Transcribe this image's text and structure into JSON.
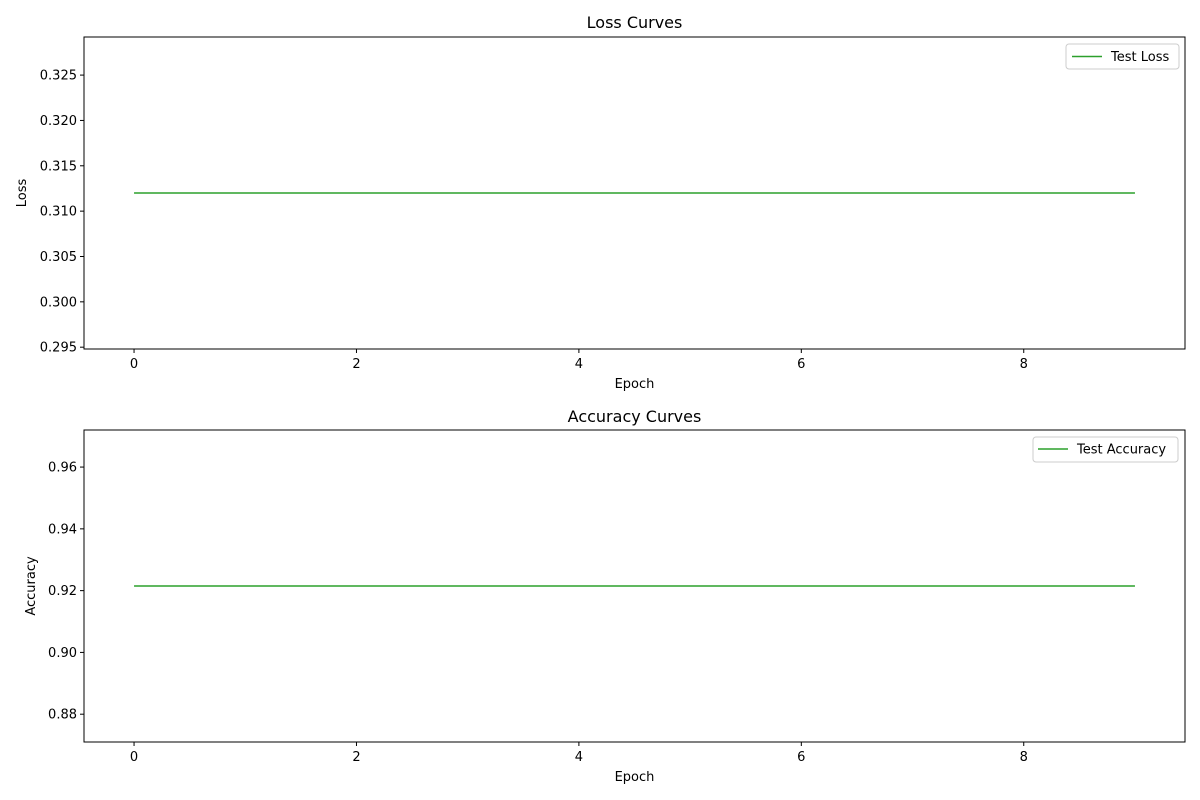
{
  "colors": {
    "series": "#2ca02c",
    "axes": "#000000",
    "legend_border": "#cccccc"
  },
  "chart_data": [
    {
      "type": "line",
      "title": "Loss Curves",
      "xlabel": "Epoch",
      "ylabel": "Loss",
      "xlim": [
        -0.45,
        9.45
      ],
      "ylim": [
        0.2948,
        0.3292
      ],
      "xticks": [
        0,
        2,
        4,
        6,
        8
      ],
      "xtick_labels": [
        "0",
        "2",
        "4",
        "6",
        "8"
      ],
      "yticks": [
        0.295,
        0.3,
        0.305,
        0.31,
        0.315,
        0.32,
        0.325
      ],
      "ytick_labels": [
        "0.295",
        "0.300",
        "0.305",
        "0.310",
        "0.315",
        "0.320",
        "0.325"
      ],
      "grid": false,
      "legend_position": "upper right",
      "series": [
        {
          "name": "Test Loss",
          "x": [
            0,
            1,
            2,
            3,
            4,
            5,
            6,
            7,
            8,
            9
          ],
          "y": [
            0.312,
            0.312,
            0.312,
            0.312,
            0.312,
            0.312,
            0.312,
            0.312,
            0.312,
            0.312
          ]
        }
      ]
    },
    {
      "type": "line",
      "title": "Accuracy Curves",
      "xlabel": "Epoch",
      "ylabel": "Accuracy",
      "xlim": [
        -0.45,
        9.45
      ],
      "ylim": [
        0.871,
        0.972
      ],
      "xticks": [
        0,
        2,
        4,
        6,
        8
      ],
      "xtick_labels": [
        "0",
        "2",
        "4",
        "6",
        "8"
      ],
      "yticks": [
        0.88,
        0.9,
        0.92,
        0.94,
        0.96
      ],
      "ytick_labels": [
        "0.88",
        "0.90",
        "0.92",
        "0.94",
        "0.96"
      ],
      "grid": false,
      "legend_position": "upper right",
      "series": [
        {
          "name": "Test Accuracy",
          "x": [
            0,
            1,
            2,
            3,
            4,
            5,
            6,
            7,
            8,
            9
          ],
          "y": [
            0.9215,
            0.9215,
            0.9215,
            0.9215,
            0.9215,
            0.9215,
            0.9215,
            0.9215,
            0.9215,
            0.9215
          ]
        }
      ]
    }
  ]
}
